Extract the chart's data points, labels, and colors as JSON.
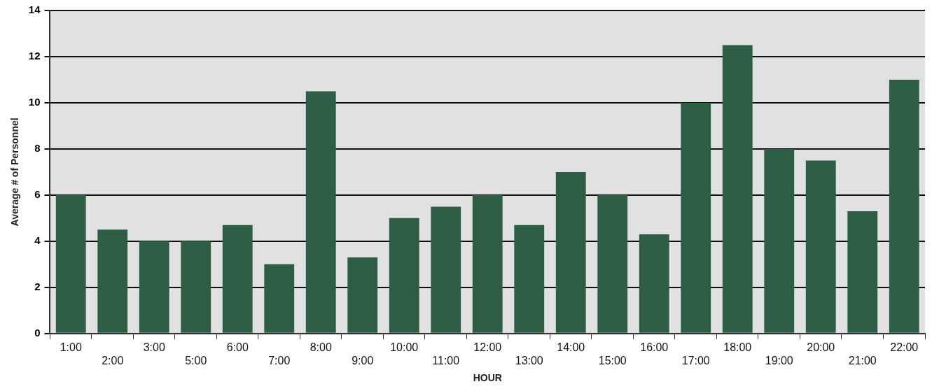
{
  "chart_data": {
    "type": "bar",
    "xlabel": "HOUR",
    "ylabel": "Average # of Personnel",
    "categories": [
      "1:00",
      "2:00",
      "3:00",
      "5:00",
      "6:00",
      "7:00",
      "8:00",
      "9:00",
      "10:00",
      "11:00",
      "12:00",
      "13:00",
      "14:00",
      "15:00",
      "16:00",
      "17:00",
      "18:00",
      "19:00",
      "20:00",
      "21:00",
      "22:00"
    ],
    "values": [
      6,
      4.5,
      4,
      4,
      4.7,
      3,
      10.5,
      3.3,
      5,
      5.5,
      6,
      4.7,
      7,
      6,
      4.3,
      10,
      12.5,
      8,
      7.5,
      5.3,
      11
    ],
    "color": "#2d5e45",
    "ylim": [
      0,
      14
    ],
    "yticks": [
      0,
      2,
      4,
      6,
      8,
      10,
      12,
      14
    ],
    "grid": "y",
    "legend": false
  }
}
